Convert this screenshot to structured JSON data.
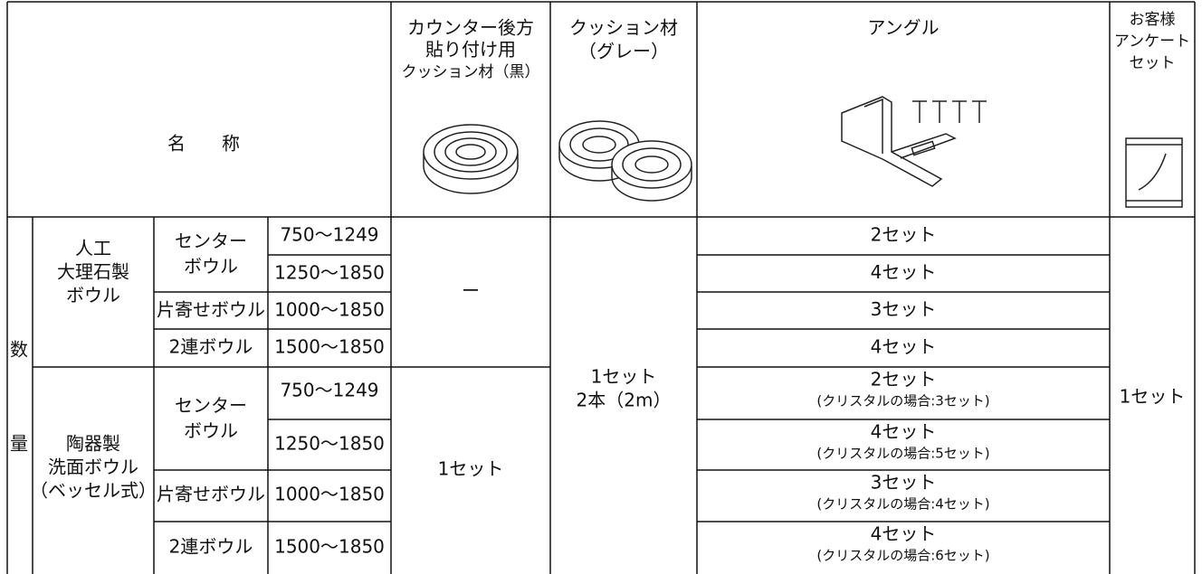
{
  "header": {
    "name": "名　　称",
    "columns": [
      {
        "lines": [
          "カウンター後方",
          "貼り付け用",
          "クッション材（黒）"
        ]
      },
      {
        "lines": [
          "クッション材",
          "（グレー）"
        ]
      },
      {
        "lines": [
          "アングル"
        ]
      },
      {
        "lines": [
          "お客様",
          "アンケート",
          "セット"
        ]
      }
    ]
  },
  "quantity_label": [
    "数",
    "量"
  ],
  "groups": [
    {
      "name": [
        "人工",
        "大理石製",
        "ボウル"
      ],
      "types": [
        {
          "name": [
            "センター",
            "ボウル"
          ],
          "sizes": [
            "750～1249",
            "1250～1850"
          ]
        },
        {
          "name": [
            "片寄せボウル"
          ],
          "sizes": [
            "1000～1850"
          ]
        },
        {
          "name": [
            "2連ボウル"
          ],
          "sizes": [
            "1500～1850"
          ]
        }
      ],
      "counter_cushion": "ー"
    },
    {
      "name": [
        "陶器製",
        "洗面ボウル",
        "（ベッセル式）"
      ],
      "types": [
        {
          "name": [
            "センター",
            "ボウル"
          ],
          "sizes": [
            "750～1249",
            "1250～1850"
          ]
        },
        {
          "name": [
            "片寄せボウル"
          ],
          "sizes": [
            "1000～1850"
          ]
        },
        {
          "name": [
            "2連ボウル"
          ],
          "sizes": [
            "1500～1850"
          ]
        }
      ],
      "counter_cushion": "1セット"
    }
  ],
  "cushion": [
    "1セット",
    "2本（2m）"
  ],
  "angle": [
    {
      "main": "2セット"
    },
    {
      "main": "4セット"
    },
    {
      "main": "3セット"
    },
    {
      "main": "4セット"
    },
    {
      "main": "2セット",
      "note": "(クリスタルの場合:3セット)"
    },
    {
      "main": "4セット",
      "note": "(クリスタルの場合:5セット)"
    },
    {
      "main": "3セット",
      "note": "(クリスタルの場合:4セット)"
    },
    {
      "main": "4セット",
      "note": "(クリスタルの場合:6セット)"
    }
  ],
  "survey": "1セット"
}
